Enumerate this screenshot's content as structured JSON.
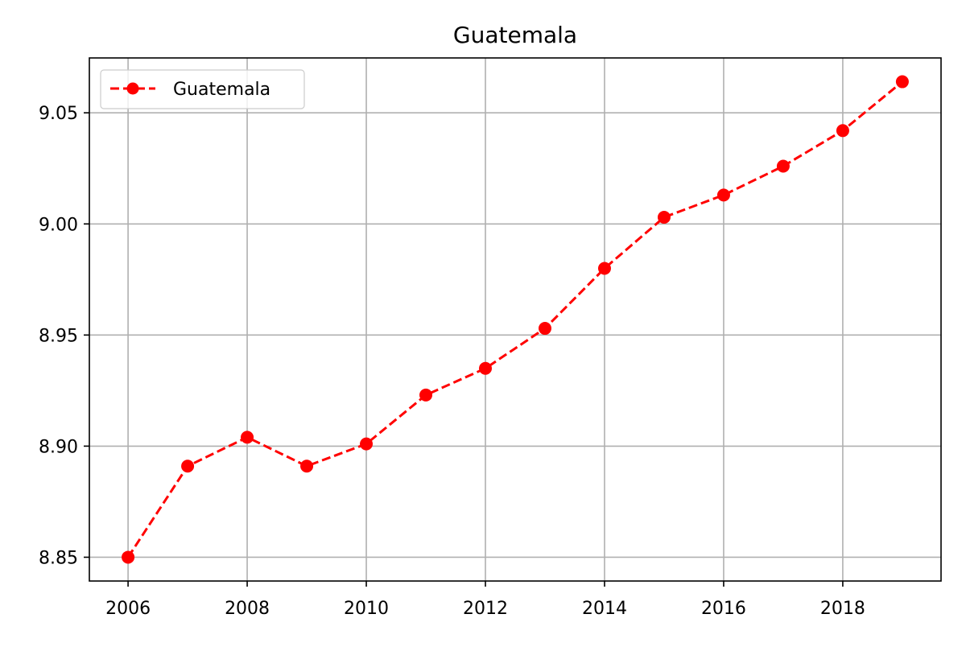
{
  "chart_data": {
    "type": "line",
    "title": "Guatemala",
    "xlabel": "",
    "ylabel": "",
    "x": [
      2006,
      2007,
      2008,
      2009,
      2010,
      2011,
      2012,
      2013,
      2014,
      2015,
      2016,
      2017,
      2018,
      2019
    ],
    "series": [
      {
        "name": "Guatemala",
        "color": "#ff0000",
        "line_style": "dashed",
        "marker": "circle",
        "values": [
          8.85,
          8.891,
          8.904,
          8.891,
          8.901,
          8.923,
          8.935,
          8.953,
          8.98,
          9.003,
          9.013,
          9.026,
          9.042,
          9.064
        ]
      }
    ],
    "xlim": [
      2005.35,
      2019.65
    ],
    "ylim": [
      8.8393,
      9.0747
    ],
    "x_ticks": [
      2006,
      2008,
      2010,
      2012,
      2014,
      2016,
      2018
    ],
    "x_tick_labels": [
      "2006",
      "2008",
      "2010",
      "2012",
      "2014",
      "2016",
      "2018"
    ],
    "y_ticks": [
      8.85,
      8.9,
      8.95,
      9.0,
      9.05
    ],
    "y_tick_labels": [
      "8.85",
      "8.90",
      "8.95",
      "9.00",
      "9.05"
    ],
    "grid": true,
    "legend_position": "top-left"
  }
}
